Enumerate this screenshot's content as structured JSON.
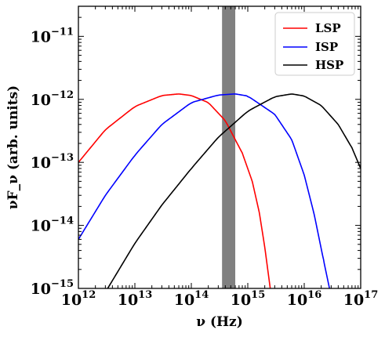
{
  "chart_data": {
    "type": "line",
    "xlabel": "ν (Hz)",
    "ylabel": "νF_ν (arb. units)",
    "xscale": "log",
    "yscale": "log",
    "xlim": [
      1000000000000.0,
      1e+17
    ],
    "ylim": [
      1e-15,
      3e-11
    ],
    "x_ticks": [
      {
        "value": 1000000000000.0,
        "base": "10",
        "exp": "12"
      },
      {
        "value": 10000000000000.0,
        "base": "10",
        "exp": "13"
      },
      {
        "value": 100000000000000.0,
        "base": "10",
        "exp": "14"
      },
      {
        "value": 1000000000000000.0,
        "base": "10",
        "exp": "15"
      },
      {
        "value": 1e+16,
        "base": "10",
        "exp": "16"
      },
      {
        "value": 1e+17,
        "base": "10",
        "exp": "17"
      }
    ],
    "y_ticks": [
      {
        "value": 1e-15,
        "base": "10",
        "exp": "−15"
      },
      {
        "value": 1e-14,
        "base": "10",
        "exp": "−14"
      },
      {
        "value": 1e-13,
        "base": "10",
        "exp": "−13"
      },
      {
        "value": 1e-12,
        "base": "10",
        "exp": "−12"
      },
      {
        "value": 1e-11,
        "base": "10",
        "exp": "−11"
      }
    ],
    "shaded_band": {
      "x_range": [
        350000000000000.0,
        600000000000000.0
      ],
      "color": "#808080"
    },
    "legend_position": "top-right",
    "grid": false,
    "series": [
      {
        "name": "LSP",
        "color": "#ff0000",
        "points": [
          [
            1000000000000.0,
            1e-13
          ],
          [
            3000000000000.0,
            3.3e-13
          ],
          [
            10000000000000.0,
            7.7e-13
          ],
          [
            30000000000000.0,
            1.15e-12
          ],
          [
            60000000000000.0,
            1.22e-12
          ],
          [
            100000000000000.0,
            1.15e-12
          ],
          [
            200000000000000.0,
            8.9e-13
          ],
          [
            400000000000000.0,
            4.6e-13
          ],
          [
            800000000000000.0,
            1.4e-13
          ],
          [
            1200000000000000.0,
            5e-14
          ],
          [
            1600000000000000.0,
            1.6e-14
          ],
          [
            2000000000000000.0,
            4.5e-15
          ],
          [
            2500000000000000.0,
            1e-15
          ]
        ]
      },
      {
        "name": "ISP",
        "color": "#0000ff",
        "points": [
          [
            1000000000000.0,
            6e-15
          ],
          [
            3000000000000.0,
            3e-14
          ],
          [
            10000000000000.0,
            1.3e-13
          ],
          [
            30000000000000.0,
            4e-13
          ],
          [
            100000000000000.0,
            8.9e-13
          ],
          [
            300000000000000.0,
            1.17e-12
          ],
          [
            600000000000000.0,
            1.22e-12
          ],
          [
            1000000000000000.0,
            1.13e-12
          ],
          [
            3000000000000000.0,
            5.8e-13
          ],
          [
            6000000000000000.0,
            2.3e-13
          ],
          [
            1e+16,
            6.3e-14
          ],
          [
            1.5e+16,
            1.5e-14
          ],
          [
            2.2e+16,
            2.8e-15
          ],
          [
            2.8e+16,
            1e-15
          ]
        ]
      },
      {
        "name": "HSP",
        "color": "#000000",
        "points": [
          [
            3300000000000.0,
            1e-15
          ],
          [
            10000000000000.0,
            5.2e-15
          ],
          [
            30000000000000.0,
            2.1e-14
          ],
          [
            100000000000000.0,
            8e-14
          ],
          [
            300000000000000.0,
            2.5e-13
          ],
          [
            1000000000000000.0,
            6.5e-13
          ],
          [
            3000000000000000.0,
            1.1e-12
          ],
          [
            6000000000000000.0,
            1.22e-12
          ],
          [
            1e+16,
            1.13e-12
          ],
          [
            2e+16,
            8e-13
          ],
          [
            4e+16,
            4e-13
          ],
          [
            7e+16,
            1.7e-13
          ],
          [
            1e+17,
            8e-14
          ]
        ]
      }
    ]
  }
}
